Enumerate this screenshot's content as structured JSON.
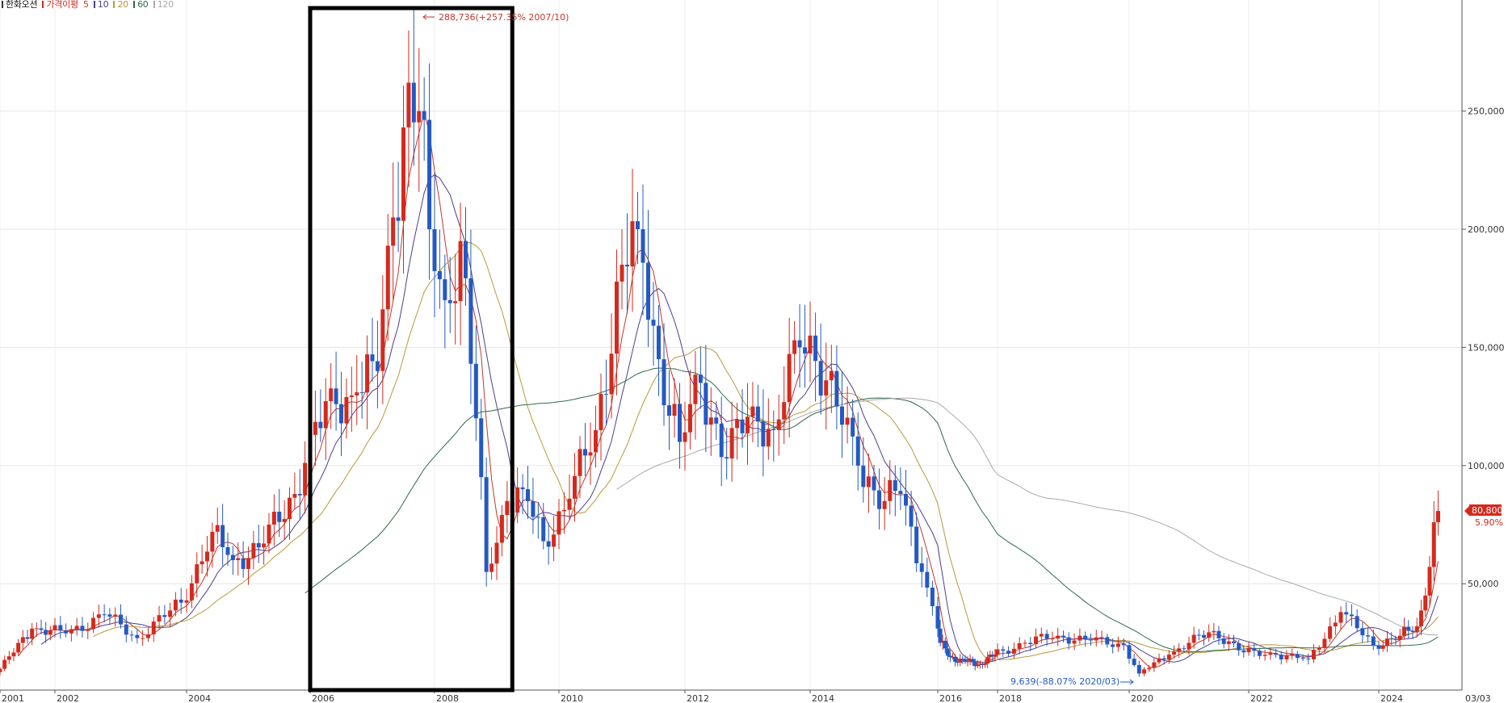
{
  "legend": {
    "stock_name": "한화오션",
    "ma_label": "가격이평",
    "periods": [
      "5",
      "10",
      "20",
      "60",
      "120"
    ]
  },
  "colors": {
    "up": "#d42a1e",
    "down": "#2459c4",
    "ma5": "#c0392b",
    "ma10": "#4b3f8a",
    "ma20": "#b89a3a",
    "ma60": "#2f6b4a",
    "ma120": "#a9a9a9",
    "highlight_box": "#000000"
  },
  "chart_data": {
    "type": "candlestick",
    "timeframe": "monthly",
    "x_axis": {
      "ticks": [
        "2001",
        "2002",
        "2004",
        "2006",
        "2008",
        "2010",
        "2012",
        "2014",
        "2016",
        "2018",
        "2020",
        "2022",
        "2024"
      ],
      "end_label": "03/03"
    },
    "y_axis": {
      "ticks": [
        "50,000",
        "100,000",
        "150,000",
        "200,000",
        "250,000"
      ],
      "range": [
        5000,
        297000
      ],
      "position": "right"
    },
    "annotations": {
      "high": "288,736(+257.35% 2007/10)",
      "low": "9,639(-88.07% 2020/03)"
    },
    "current": {
      "price": "80,800",
      "change": "5.90%"
    },
    "highlight_box": {
      "from": "2006",
      "to": "2009-04"
    },
    "monthly_close_anchors": [
      [
        "2001-01",
        14000
      ],
      [
        "2001-08",
        31000
      ],
      [
        "2002-03",
        29000
      ],
      [
        "2002-10",
        37000
      ],
      [
        "2003-04",
        27000
      ],
      [
        "2003-12",
        42000
      ],
      [
        "2004-06",
        72000
      ],
      [
        "2004-10",
        60000
      ],
      [
        "2005-04",
        67000
      ],
      [
        "2005-10",
        88000
      ],
      [
        "2006-01",
        113000
      ],
      [
        "2006-06",
        126000
      ],
      [
        "2006-10",
        131000
      ],
      [
        "2007-02",
        140000
      ],
      [
        "2007-05",
        205000
      ],
      [
        "2007-08",
        262000
      ],
      [
        "2007-10",
        250000
      ],
      [
        "2007-12",
        200000
      ],
      [
        "2008-03",
        170000
      ],
      [
        "2008-06",
        195000
      ],
      [
        "2008-09",
        120000
      ],
      [
        "2008-11",
        55000
      ],
      [
        "2009-03",
        85000
      ],
      [
        "2009-06",
        90000
      ],
      [
        "2009-10",
        68000
      ],
      [
        "2010-03",
        86000
      ],
      [
        "2010-08",
        115000
      ],
      [
        "2011-01",
        185000
      ],
      [
        "2011-04",
        200000
      ],
      [
        "2011-08",
        145000
      ],
      [
        "2011-12",
        110000
      ],
      [
        "2012-04",
        135000
      ],
      [
        "2012-09",
        103000
      ],
      [
        "2013-02",
        125000
      ],
      [
        "2013-06",
        115000
      ],
      [
        "2013-11",
        150000
      ],
      [
        "2014-01",
        155000
      ],
      [
        "2014-06",
        125000
      ],
      [
        "2014-10",
        100000
      ],
      [
        "2015-03",
        85000
      ],
      [
        "2015-06",
        88000
      ],
      [
        "2015-10",
        55000
      ],
      [
        "2016-02",
        25000
      ],
      [
        "2016-06",
        19000
      ],
      [
        "2016-12",
        17000
      ],
      [
        "2017-06",
        16000
      ],
      [
        "2017-12",
        20000
      ],
      [
        "2018-06",
        25000
      ],
      [
        "2018-12",
        28000
      ],
      [
        "2019-06",
        26000
      ],
      [
        "2019-12",
        24000
      ],
      [
        "2020-03",
        12000
      ],
      [
        "2020-09",
        20000
      ],
      [
        "2021-01",
        25000
      ],
      [
        "2021-06",
        30000
      ],
      [
        "2021-12",
        21000
      ],
      [
        "2022-06",
        20000
      ],
      [
        "2022-12",
        18000
      ],
      [
        "2023-06",
        38000
      ],
      [
        "2023-12",
        24000
      ],
      [
        "2024-06",
        28000
      ],
      [
        "2024-10",
        32000
      ],
      [
        "2024-12",
        45000
      ],
      [
        "2025-02",
        76000
      ],
      [
        "2025-03",
        80800
      ]
    ]
  }
}
